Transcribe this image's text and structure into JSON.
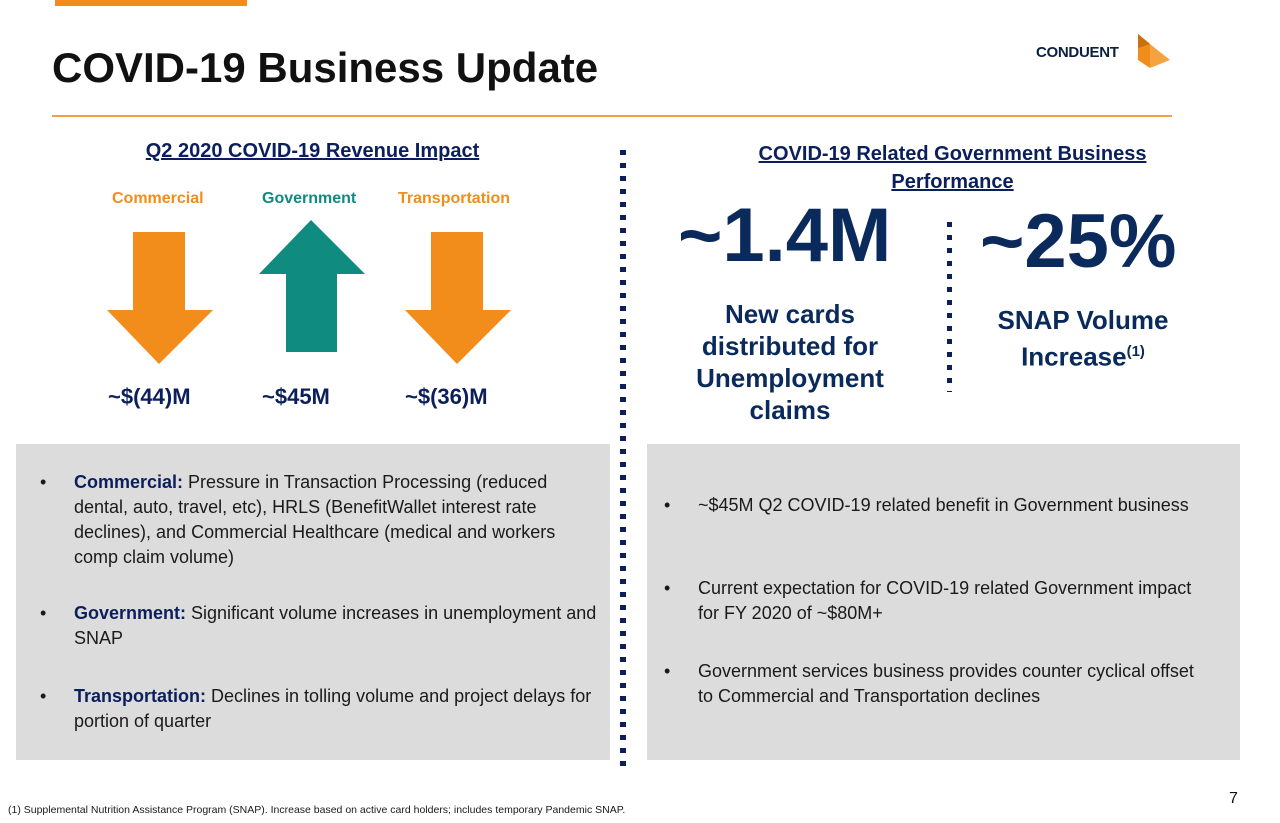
{
  "slide": {
    "title": "COVID-19 Business Update",
    "logo_text": "CONDUENT",
    "page_number": "7",
    "footnote": "(1) Supplemental Nutrition Assistance Program (SNAP). Increase based on active card holders; includes temporary Pandemic SNAP."
  },
  "colors": {
    "orange": "#f28c1a",
    "teal": "#0f8b7f",
    "navy": "#0b1f5c",
    "panel_gray": "#dcdcdc"
  },
  "revenue_impact": {
    "title": "Q2 2020 COVID-19 Revenue Impact",
    "segments": [
      {
        "label": "Commercial",
        "direction": "down",
        "amount": "~$(44)M",
        "color": "#f28c1a"
      },
      {
        "label": "Government",
        "direction": "up",
        "amount": "~$45M",
        "color": "#0f8b7f"
      },
      {
        "label": "Transportation",
        "direction": "down",
        "amount": "~$(36)M",
        "color": "#f28c1a"
      }
    ]
  },
  "gov_performance": {
    "title_line1": "COVID-19 Related Government Business",
    "title_line2": "Performance",
    "stats": [
      {
        "value": "~1.4M",
        "desc_lines": [
          "New cards",
          "distributed for",
          "Unemployment",
          "claims"
        ]
      },
      {
        "value": "~25%",
        "desc_line1": "SNAP Volume",
        "desc_line2": "Increase",
        "superscript": "(1)"
      }
    ]
  },
  "left_bullets": [
    {
      "bold": "Commercial:",
      "text": " Pressure in Transaction Processing (reduced dental, auto, travel, etc), HRLS (BenefitWallet interest rate declines), and Commercial Healthcare (medical and workers comp claim volume)"
    },
    {
      "bold": "Government:",
      "text": " Significant volume increases in unemployment and SNAP"
    },
    {
      "bold": "Transportation:",
      "text": " Declines in tolling volume and project delays for portion of quarter"
    }
  ],
  "right_bullets": [
    {
      "text": "~$45M Q2 COVID-19 related benefit in Government business"
    },
    {
      "text": "Current expectation for COVID-19 related Government impact for FY 2020 of ~$80M+"
    },
    {
      "text": "Government services business provides counter cyclical offset to Commercial and Transportation declines"
    }
  ]
}
